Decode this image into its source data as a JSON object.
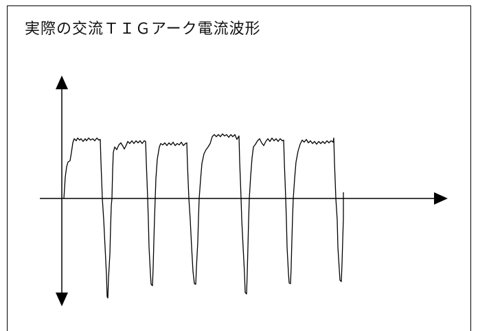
{
  "title": "実際の交流ＴＩＧアーク電流波形",
  "colors": {
    "line": "#000000",
    "background": "#ffffff"
  }
}
